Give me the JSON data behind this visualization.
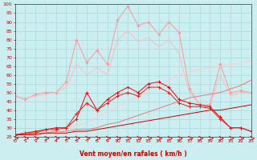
{
  "bg_color": "#cceef0",
  "grid_color": "#aadddd",
  "xlabel": "Vent moyen/en rafales ( km/h )",
  "xlabel_color": "#cc0000",
  "tick_color": "#cc0000",
  "xlim": [
    0,
    23
  ],
  "ylim": [
    25,
    100
  ],
  "yticks": [
    25,
    30,
    35,
    40,
    45,
    50,
    55,
    60,
    65,
    70,
    75,
    80,
    85,
    90,
    95,
    100
  ],
  "xticks": [
    0,
    1,
    2,
    3,
    4,
    5,
    6,
    7,
    8,
    9,
    10,
    11,
    12,
    13,
    14,
    15,
    16,
    17,
    18,
    19,
    20,
    21,
    22,
    23
  ],
  "line_rafales_x": [
    0,
    1,
    2,
    3,
    4,
    5,
    6,
    7,
    8,
    9,
    10,
    11,
    12,
    13,
    14,
    15,
    16,
    17,
    18,
    19,
    20,
    21,
    22,
    23
  ],
  "line_rafales_y": [
    48,
    46,
    49,
    50,
    50,
    56,
    80,
    67,
    74,
    66,
    91,
    99,
    88,
    90,
    83,
    90,
    84,
    52,
    43,
    43,
    66,
    50,
    51,
    50
  ],
  "line_rafales_color": "#ff9999",
  "line_rafales2_x": [
    0,
    1,
    2,
    3,
    4,
    5,
    6,
    7,
    8,
    9,
    10,
    11,
    12,
    13,
    14,
    15,
    16,
    17,
    18,
    19,
    20,
    21,
    22,
    23
  ],
  "line_rafales2_y": [
    48,
    47,
    48,
    49,
    50,
    53,
    66,
    60,
    64,
    60,
    80,
    85,
    79,
    81,
    76,
    80,
    72,
    50,
    43,
    42,
    60,
    48,
    50,
    50
  ],
  "line_rafales2_color": "#ffbbbb",
  "line_moy_high_x": [
    0,
    1,
    2,
    3,
    4,
    5,
    6,
    7,
    8,
    9,
    10,
    11,
    12,
    13,
    14,
    15,
    16,
    17,
    18,
    19,
    20,
    21,
    22,
    23
  ],
  "line_moy_high_y": [
    26,
    27,
    27,
    28,
    29,
    30,
    31,
    33,
    36,
    39,
    42,
    45,
    48,
    51,
    54,
    57,
    60,
    62,
    63,
    64,
    65,
    66,
    67,
    68
  ],
  "line_moy_high_color": "#ffcccc",
  "line_moy_med_x": [
    0,
    1,
    2,
    3,
    4,
    5,
    6,
    7,
    8,
    9,
    10,
    11,
    12,
    13,
    14,
    15,
    16,
    17,
    18,
    19,
    20,
    21,
    22,
    23
  ],
  "line_moy_med_y": [
    26,
    26,
    27,
    27,
    28,
    28,
    29,
    29,
    30,
    32,
    33,
    35,
    37,
    39,
    41,
    43,
    45,
    47,
    48,
    49,
    50,
    52,
    54,
    57
  ],
  "line_moy_med_color": "#ee7777",
  "line_moy_low_x": [
    0,
    1,
    2,
    3,
    4,
    5,
    6,
    7,
    8,
    9,
    10,
    11,
    12,
    13,
    14,
    15,
    16,
    17,
    18,
    19,
    20,
    21,
    22,
    23
  ],
  "line_moy_low_y": [
    26,
    26,
    26,
    27,
    27,
    27,
    28,
    28,
    29,
    30,
    31,
    32,
    33,
    34,
    35,
    36,
    37,
    38,
    39,
    40,
    40,
    41,
    42,
    43
  ],
  "line_moy_low_color": "#cc0000",
  "line_wind_x": [
    0,
    1,
    2,
    3,
    4,
    5,
    6,
    7,
    8,
    9,
    10,
    11,
    12,
    13,
    14,
    15,
    16,
    17,
    18,
    19,
    20,
    21,
    22,
    23
  ],
  "line_wind_y": [
    26,
    27,
    28,
    29,
    30,
    30,
    35,
    50,
    40,
    46,
    50,
    53,
    50,
    55,
    56,
    53,
    46,
    44,
    43,
    42,
    36,
    30,
    30,
    28
  ],
  "line_wind_color": "#ff0000",
  "line_wind2_x": [
    0,
    1,
    2,
    3,
    4,
    5,
    6,
    7,
    8,
    9,
    10,
    11,
    12,
    13,
    14,
    15,
    16,
    17,
    18,
    19,
    20,
    21,
    22,
    23
  ],
  "line_wind2_y": [
    26,
    27,
    27,
    29,
    29,
    30,
    38,
    44,
    40,
    44,
    48,
    50,
    48,
    53,
    53,
    50,
    44,
    42,
    42,
    41,
    35,
    30,
    30,
    28
  ],
  "line_wind2_color": "#dd2222"
}
